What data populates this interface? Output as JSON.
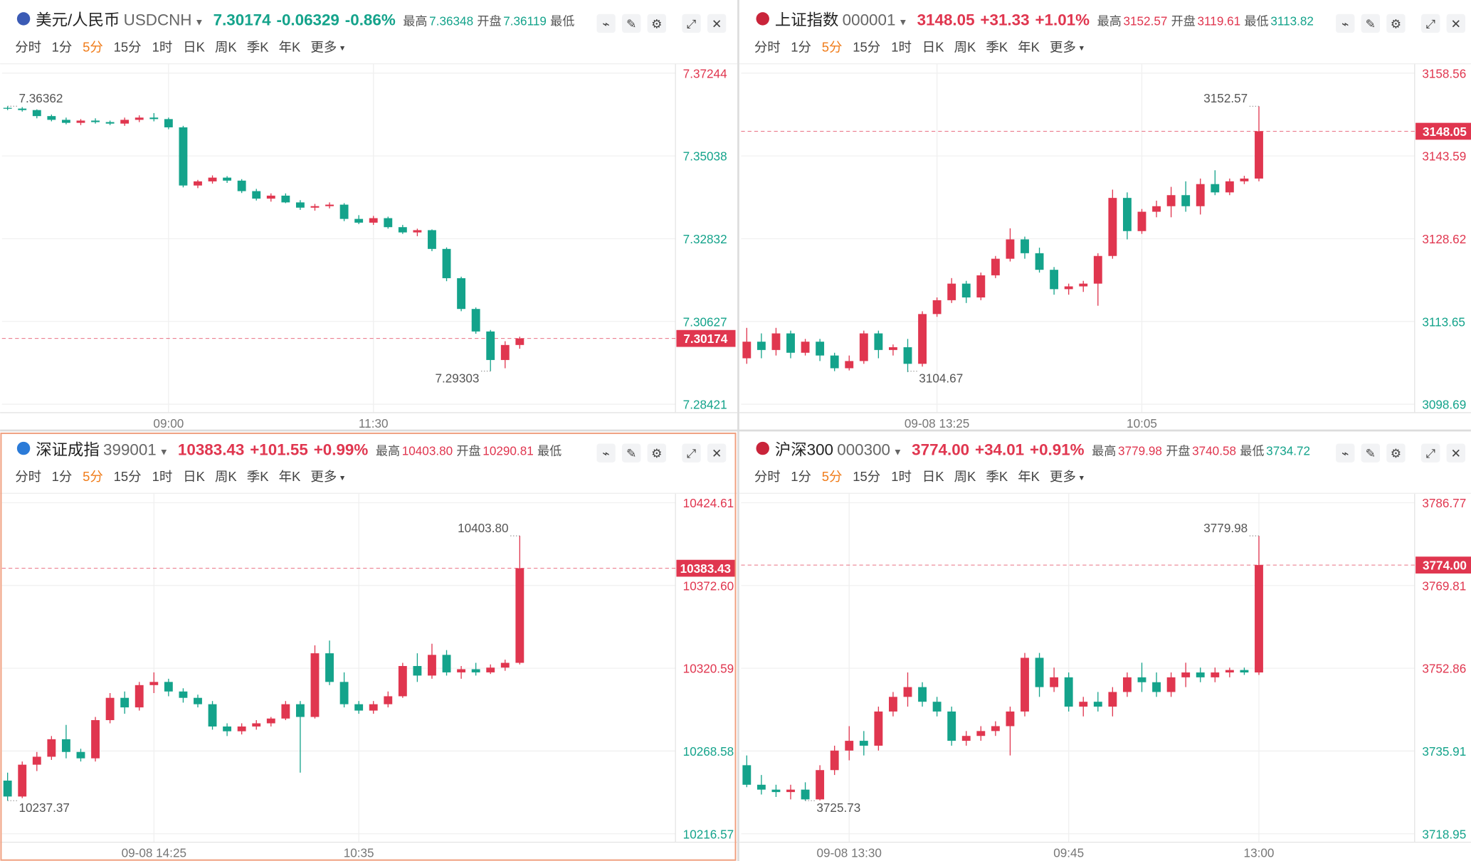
{
  "colors": {
    "up": "#e0364f",
    "down": "#14a38b"
  },
  "tabs": [
    "分时",
    "1分",
    "5分",
    "15分",
    "1时",
    "日K",
    "周K",
    "季K",
    "年K",
    "更多"
  ],
  "chart_data": [
    {
      "type": "candlestick",
      "name": "美元/人民币",
      "code": "USDCNH",
      "price": "7.30174",
      "change": "-0.06329",
      "change_pct": "-0.86%",
      "stats": [
        {
          "label": "最高",
          "value": "7.36348"
        },
        {
          "label": "开盘",
          "value": "7.36119"
        },
        {
          "label": "最低"
        }
      ],
      "ylim": [
        7.28421,
        7.37244
      ],
      "yticks": [
        7.37244,
        7.35038,
        7.32832,
        7.30627,
        7.28421
      ],
      "xticks": [
        {
          "value": 11,
          "label": "09:00"
        },
        {
          "value": 25,
          "label": "11:30"
        }
      ],
      "high_label": 7.36362,
      "low_label": 7.29303,
      "last_price": 7.30174,
      "ohlc": [
        [
          7.3632,
          7.36362,
          7.3626,
          7.363
        ],
        [
          7.363,
          7.3634,
          7.3622,
          7.3626
        ],
        [
          7.3626,
          7.3628,
          7.3604,
          7.361
        ],
        [
          7.361,
          7.3614,
          7.3596,
          7.36
        ],
        [
          7.36,
          7.3606,
          7.3588,
          7.3592
        ],
        [
          7.3592,
          7.3602,
          7.3586,
          7.3598
        ],
        [
          7.3598,
          7.3604,
          7.359,
          7.3594
        ],
        [
          7.3594,
          7.3598,
          7.3586,
          7.359
        ],
        [
          7.359,
          7.3606,
          7.3584,
          7.36
        ],
        [
          7.36,
          7.3612,
          7.3594,
          7.3606
        ],
        [
          7.3606,
          7.3618,
          7.3596,
          7.3602
        ],
        [
          7.3602,
          7.3606,
          7.3575,
          7.358
        ],
        [
          7.358,
          7.3584,
          7.342,
          7.3425
        ],
        [
          7.3425,
          7.344,
          7.3418,
          7.3436
        ],
        [
          7.3436,
          7.3452,
          7.343,
          7.3446
        ],
        [
          7.3446,
          7.345,
          7.3432,
          7.3438
        ],
        [
          7.3438,
          7.3442,
          7.3405,
          7.341
        ],
        [
          7.341,
          7.3416,
          7.3385,
          7.339
        ],
        [
          7.339,
          7.3404,
          7.3382,
          7.3398
        ],
        [
          7.3398,
          7.3404,
          7.3378,
          7.338
        ],
        [
          7.338,
          7.3386,
          7.336,
          7.3366
        ],
        [
          7.3366,
          7.3376,
          7.3358,
          7.337
        ],
        [
          7.337,
          7.338,
          7.3364,
          7.3374
        ],
        [
          7.3374,
          7.3378,
          7.333,
          7.3336
        ],
        [
          7.3336,
          7.3346,
          7.3322,
          7.3326
        ],
        [
          7.3326,
          7.3344,
          7.332,
          7.3338
        ],
        [
          7.3338,
          7.3342,
          7.331,
          7.3314
        ],
        [
          7.3314,
          7.332,
          7.3296,
          7.33
        ],
        [
          7.33,
          7.331,
          7.329,
          7.3306
        ],
        [
          7.3306,
          7.3308,
          7.325,
          7.3256
        ],
        [
          7.3256,
          7.326,
          7.317,
          7.3178
        ],
        [
          7.3178,
          7.3182,
          7.309,
          7.3096
        ],
        [
          7.3096,
          7.31,
          7.303,
          7.3036
        ],
        [
          7.3036,
          7.304,
          7.29303,
          7.296
        ],
        [
          7.296,
          7.301,
          7.2938,
          7.3
        ],
        [
          7.3,
          7.3022,
          7.299,
          7.30174
        ]
      ]
    },
    {
      "type": "candlestick",
      "name": "上证指数",
      "code": "000001",
      "price": "3148.05",
      "change": "+31.33",
      "change_pct": "+1.01%",
      "stats": [
        {
          "label": "最高",
          "value": "3152.57"
        },
        {
          "label": "开盘",
          "value": "3119.61"
        },
        {
          "label": "最低",
          "value": "3113.82"
        }
      ],
      "ylim": [
        3098.69,
        3158.56
      ],
      "yticks": [
        3158.56,
        3143.59,
        3128.62,
        3113.65,
        3098.69
      ],
      "xticks": [
        {
          "value": 13,
          "label": "09-08 13:25"
        },
        {
          "value": 27,
          "label": "10:05"
        }
      ],
      "high_label": 3152.57,
      "low_label": 3104.67,
      "last_price": 3148.05,
      "ohlc": [
        [
          3107.0,
          3112.5,
          3106.0,
          3110.0
        ],
        [
          3110.0,
          3111.5,
          3107.0,
          3108.5
        ],
        [
          3108.5,
          3112.5,
          3107.5,
          3111.5
        ],
        [
          3111.5,
          3112.0,
          3107.0,
          3108.0
        ],
        [
          3108.0,
          3110.5,
          3107.5,
          3110.0
        ],
        [
          3110.0,
          3110.5,
          3106.5,
          3107.5
        ],
        [
          3107.5,
          3108.0,
          3104.67,
          3105.2
        ],
        [
          3105.2,
          3107.5,
          3104.8,
          3106.5
        ],
        [
          3106.5,
          3112.0,
          3106.0,
          3111.5
        ],
        [
          3111.5,
          3112.0,
          3107.0,
          3108.5
        ],
        [
          3108.5,
          3109.5,
          3107.5,
          3109.0
        ],
        [
          3109.0,
          3110.5,
          3104.5,
          3106.0
        ],
        [
          3106.0,
          3115.5,
          3105.5,
          3115.0
        ],
        [
          3115.0,
          3118.0,
          3114.5,
          3117.5
        ],
        [
          3117.5,
          3121.5,
          3117.0,
          3120.5
        ],
        [
          3120.5,
          3121.0,
          3117.0,
          3118.0
        ],
        [
          3118.0,
          3122.5,
          3117.5,
          3122.0
        ],
        [
          3122.0,
          3125.5,
          3121.5,
          3125.0
        ],
        [
          3125.0,
          3130.5,
          3124.5,
          3128.5
        ],
        [
          3128.5,
          3129.0,
          3125.0,
          3126.0
        ],
        [
          3126.0,
          3127.0,
          3122.5,
          3123.0
        ],
        [
          3123.0,
          3123.5,
          3118.5,
          3119.5
        ],
        [
          3119.5,
          3120.5,
          3118.5,
          3120.0
        ],
        [
          3120.0,
          3121.0,
          3119.0,
          3120.5
        ],
        [
          3120.5,
          3126.0,
          3116.5,
          3125.5
        ],
        [
          3125.5,
          3137.5,
          3125.0,
          3136.0
        ],
        [
          3136.0,
          3137.0,
          3128.5,
          3130.0
        ],
        [
          3130.0,
          3134.0,
          3129.5,
          3133.5
        ],
        [
          3133.5,
          3135.5,
          3132.5,
          3134.5
        ],
        [
          3134.5,
          3138.0,
          3132.5,
          3136.5
        ],
        [
          3136.5,
          3139.0,
          3133.5,
          3134.5
        ],
        [
          3134.5,
          3139.5,
          3133.0,
          3138.5
        ],
        [
          3138.5,
          3141.0,
          3136.5,
          3137.0
        ],
        [
          3137.0,
          3139.5,
          3136.5,
          3139.0
        ],
        [
          3139.0,
          3140.0,
          3138.5,
          3139.5
        ],
        [
          3139.5,
          3152.57,
          3139.0,
          3148.05
        ]
      ]
    },
    {
      "type": "candlestick",
      "name": "深证成指",
      "code": "399001",
      "price": "10383.43",
      "change": "+101.55",
      "change_pct": "+0.99%",
      "stats": [
        {
          "label": "最高",
          "value": "10403.80"
        },
        {
          "label": "开盘",
          "value": "10290.81"
        },
        {
          "label": "最低"
        }
      ],
      "ylim": [
        10216.57,
        10424.61
      ],
      "yticks": [
        10424.61,
        {
          "value": 10372.6,
          "label": "10372.60"
        },
        10320.59,
        10268.58,
        10216.57
      ],
      "xticks": [
        {
          "value": 10,
          "label": "09-08 14:25"
        },
        {
          "value": 24,
          "label": "10:35"
        }
      ],
      "high_label": {
        "value": 10403.8,
        "label": "10403.80"
      },
      "low_label": 10237.37,
      "last_price": 10383.43,
      "ohlc": [
        [
          10250,
          10255,
          10237.37,
          10240
        ],
        [
          10240,
          10262,
          10239,
          10260
        ],
        [
          10260,
          10268,
          10256,
          10265
        ],
        [
          10265,
          10278,
          10263,
          10276
        ],
        [
          10276,
          10285,
          10264,
          10268
        ],
        [
          10268,
          10270,
          10262,
          10264
        ],
        [
          10264,
          10290,
          10262,
          10288
        ],
        [
          10288,
          10305,
          10286,
          10302
        ],
        [
          10302,
          10306,
          10292,
          10296
        ],
        [
          10296,
          10312,
          10294,
          10310
        ],
        [
          10310,
          10318,
          10305,
          10312
        ],
        [
          10312,
          10314,
          10303,
          10306
        ],
        [
          10306,
          10308,
          10299,
          10302
        ],
        [
          10302,
          10304,
          10296,
          10298
        ],
        [
          10298,
          10300,
          10282,
          10284
        ],
        [
          10284,
          10286,
          10278,
          10281
        ],
        [
          10281,
          10286,
          10279,
          10284
        ],
        [
          10284,
          10288,
          10282,
          10286
        ],
        [
          10286,
          10290,
          10284,
          10289
        ],
        [
          10289,
          10300,
          10288,
          10298
        ],
        [
          10298,
          10300,
          10255,
          10290
        ],
        [
          10290,
          10335,
          10289,
          10330
        ],
        [
          10330,
          10338,
          10310,
          10312
        ],
        [
          10312,
          10318,
          10296,
          10298
        ],
        [
          10298,
          10300,
          10292,
          10294
        ],
        [
          10294,
          10300,
          10292,
          10298
        ],
        [
          10298,
          10306,
          10296,
          10303
        ],
        [
          10303,
          10324,
          10302,
          10322
        ],
        [
          10322,
          10330,
          10312,
          10316
        ],
        [
          10316,
          10336,
          10314,
          10329
        ],
        [
          10329,
          10332,
          10316,
          10318
        ],
        [
          10318,
          10322,
          10314,
          10320
        ],
        [
          10320,
          10324,
          10316,
          10318
        ],
        [
          10318,
          10323,
          10317,
          10321
        ],
        [
          10321,
          10326,
          10319,
          10324
        ],
        [
          10324,
          10403.8,
          10323,
          10383.43
        ]
      ]
    },
    {
      "type": "candlestick",
      "name": "沪深300",
      "code": "000300",
      "price": "3774.00",
      "change": "+34.01",
      "change_pct": "+0.91%",
      "stats": [
        {
          "label": "最高",
          "value": "3779.98"
        },
        {
          "label": "开盘",
          "value": "3740.58"
        },
        {
          "label": "最低",
          "value": "3734.72"
        }
      ],
      "ylim": [
        3718.95,
        3786.77
      ],
      "yticks": [
        3786.77,
        3769.81,
        3752.86,
        3735.91,
        3718.95
      ],
      "xticks": [
        {
          "value": 7,
          "label": "09-08 13:30"
        },
        {
          "value": 22,
          "label": "09:45"
        },
        {
          "value": 35,
          "label": "13:00"
        }
      ],
      "high_label": 3779.98,
      "low_label": 3725.73,
      "last_price": {
        "value": 3774,
        "label": "3774.00"
      },
      "ohlc": [
        [
          3733,
          3735,
          3728.5,
          3729
        ],
        [
          3729,
          3731,
          3727,
          3728
        ],
        [
          3728,
          3729,
          3726.5,
          3727.5
        ],
        [
          3727.5,
          3729,
          3726,
          3728
        ],
        [
          3728,
          3729.5,
          3725.73,
          3726
        ],
        [
          3726,
          3733,
          3725.8,
          3732
        ],
        [
          3732,
          3737,
          3731,
          3736
        ],
        [
          3736,
          3741,
          3734,
          3738
        ],
        [
          3738,
          3740,
          3735,
          3737
        ],
        [
          3737,
          3745,
          3736,
          3744
        ],
        [
          3744,
          3748,
          3743,
          3747
        ],
        [
          3747,
          3752,
          3745,
          3749
        ],
        [
          3749,
          3750,
          3745,
          3746
        ],
        [
          3746,
          3747,
          3743,
          3744
        ],
        [
          3744,
          3745,
          3737,
          3738
        ],
        [
          3738,
          3740,
          3737,
          3739
        ],
        [
          3739,
          3741,
          3738,
          3740
        ],
        [
          3740,
          3742,
          3739,
          3741
        ],
        [
          3741,
          3745,
          3735,
          3744
        ],
        [
          3744,
          3756,
          3743,
          3755
        ],
        [
          3755,
          3756,
          3747,
          3749
        ],
        [
          3749,
          3753,
          3748,
          3751
        ],
        [
          3751,
          3752,
          3744,
          3745
        ],
        [
          3745,
          3747,
          3743,
          3746
        ],
        [
          3746,
          3748,
          3744,
          3745
        ],
        [
          3745,
          3749,
          3743,
          3748
        ],
        [
          3748,
          3752,
          3747,
          3751
        ],
        [
          3751,
          3754,
          3748,
          3750
        ],
        [
          3750,
          3752,
          3747,
          3748
        ],
        [
          3748,
          3752,
          3747,
          3751
        ],
        [
          3751,
          3754,
          3749,
          3752
        ],
        [
          3752,
          3753,
          3750,
          3751
        ],
        [
          3751,
          3753,
          3750,
          3752
        ],
        [
          3752,
          3753,
          3751,
          3752.5
        ],
        [
          3752.5,
          3753,
          3751.5,
          3752
        ],
        [
          3752,
          3779.98,
          3751.5,
          3774
        ]
      ]
    }
  ]
}
